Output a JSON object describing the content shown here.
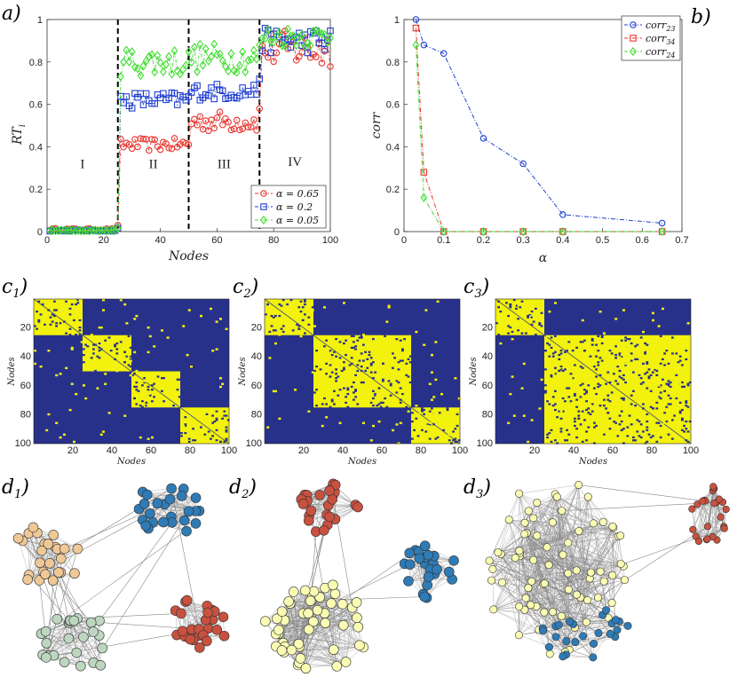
{
  "panel_labels": {
    "a": "a)",
    "b": "b)",
    "c1": "c",
    "c1_sub": "1",
    "c2": "c",
    "c2_sub": "2",
    "c3": "c",
    "c3_sub": "3",
    "d1": "d",
    "d1_sub": "1",
    "d2": "d",
    "d2_sub": "2",
    "d3": "d",
    "d3_sub": "3",
    "paren": ")"
  },
  "colors": {
    "red": "#e8342c",
    "blue": "#1f3fd1",
    "green": "#3fdc2e",
    "matrix_bg": "#28318a",
    "matrix_fg": "#f2f20c",
    "node_orange": "#f0c896",
    "node_blue": "#2e7bb6",
    "node_red": "#c9513f",
    "node_green": "#bcd6c0",
    "node_yellow": "#fafcb4",
    "edge": "#888888"
  },
  "chart_data": [
    {
      "id": "a",
      "type": "line",
      "xlabel": "Nodes",
      "ylabel": "RT",
      "ylabel_sub": "i",
      "xlim": [
        0,
        100
      ],
      "ylim": [
        0,
        1
      ],
      "xticks": [
        "0",
        "20",
        "40",
        "60",
        "80",
        "100"
      ],
      "yticks": [
        "0",
        "0.2",
        "0.4",
        "0.6",
        "0.8",
        "1"
      ],
      "dividers_x": [
        25,
        50,
        75
      ],
      "regions": [
        {
          "label": "I",
          "x": 12.5,
          "y": 0.3
        },
        {
          "label": "II",
          "x": 37.5,
          "y": 0.3
        },
        {
          "label": "III",
          "x": 62.5,
          "y": 0.3
        },
        {
          "label": "IV",
          "x": 87.5,
          "y": 0.31
        }
      ],
      "legend_position": "bottom-right",
      "series": [
        {
          "name": "α = 0.65",
          "marker": "circle",
          "color_key": "red",
          "level_mean": [
            0.01,
            0.41,
            0.52,
            0.86
          ],
          "level_amp": [
            0.005,
            0.03,
            0.05,
            0.09
          ]
        },
        {
          "name": "α = 0.2",
          "marker": "square",
          "color_key": "blue",
          "level_mean": [
            0.005,
            0.62,
            0.66,
            0.9
          ],
          "level_amp": [
            0.003,
            0.04,
            0.04,
            0.06
          ]
        },
        {
          "name": "α = 0.05",
          "marker": "diamond",
          "color_key": "green",
          "level_mean": [
            0.005,
            0.8,
            0.82,
            0.92
          ],
          "level_amp": [
            0.003,
            0.07,
            0.07,
            0.05
          ]
        }
      ]
    },
    {
      "id": "b",
      "type": "line",
      "xlabel": "α",
      "ylabel": "corr",
      "xlim": [
        0,
        0.7
      ],
      "ylim": [
        0,
        1
      ],
      "xticks": [
        "0",
        "0.1",
        "0.2",
        "0.3",
        "0.4",
        "0.5",
        "0.6",
        "0.7"
      ],
      "yticks": [
        "0",
        "0.2",
        "0.4",
        "0.6",
        "0.8",
        "1"
      ],
      "legend_position": "top-right",
      "series": [
        {
          "name": "corr",
          "sub": "23",
          "marker": "circle",
          "color_key": "blue",
          "x": [
            0.03,
            0.05,
            0.1,
            0.2,
            0.3,
            0.4,
            0.65
          ],
          "y": [
            1.0,
            0.88,
            0.84,
            0.44,
            0.32,
            0.08,
            0.04
          ]
        },
        {
          "name": "corr",
          "sub": "34",
          "marker": "square",
          "color_key": "red",
          "x": [
            0.03,
            0.05,
            0.1,
            0.2,
            0.3,
            0.4,
            0.65
          ],
          "y": [
            0.96,
            0.28,
            0.0,
            0.0,
            0.0,
            0.0,
            0.0
          ]
        },
        {
          "name": "corr",
          "sub": "24",
          "marker": "diamond",
          "color_key": "green",
          "x": [
            0.03,
            0.05,
            0.1,
            0.2,
            0.3,
            0.4,
            0.65
          ],
          "y": [
            0.88,
            0.16,
            0.0,
            0.0,
            0.0,
            0.0,
            0.0
          ]
        }
      ]
    },
    {
      "id": "c1",
      "type": "heatmap",
      "xlabel": "Nodes",
      "ylabel": "Nodes",
      "xticks": [
        "20",
        "40",
        "60",
        "80",
        "100"
      ],
      "yticks": [
        "20",
        "40",
        "60",
        "80",
        "100"
      ],
      "blocks": [
        [
          0,
          25
        ],
        [
          25,
          50
        ],
        [
          50,
          75
        ],
        [
          75,
          100
        ]
      ]
    },
    {
      "id": "c2",
      "type": "heatmap",
      "xlabel": "Nodes",
      "ylabel": "Nodes",
      "xticks": [
        "20",
        "40",
        "60",
        "80",
        "100"
      ],
      "yticks": [
        "20",
        "40",
        "60",
        "80",
        "100"
      ],
      "blocks": [
        [
          0,
          25
        ],
        [
          25,
          75
        ],
        [
          75,
          100
        ]
      ]
    },
    {
      "id": "c3",
      "type": "heatmap",
      "xlabel": "Nodes",
      "ylabel": "Nodes",
      "xticks": [
        "20",
        "40",
        "60",
        "80",
        "100"
      ],
      "yticks": [
        "20",
        "40",
        "60",
        "80",
        "100"
      ],
      "blocks": [
        [
          0,
          25
        ],
        [
          25,
          100
        ]
      ]
    }
  ]
}
